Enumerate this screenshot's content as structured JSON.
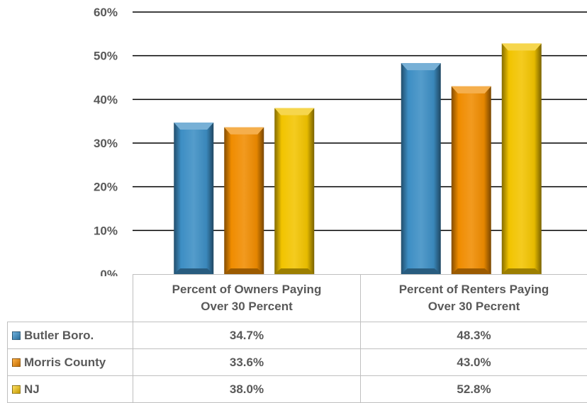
{
  "chart_data": {
    "type": "bar",
    "categories": [
      "Percent of Owners Paying Over 30 Percent",
      "Percent of Renters Paying Over 30 Pecrent"
    ],
    "series": [
      {
        "name": "Butler Boro.",
        "values": [
          34.7,
          48.3
        ],
        "labels": [
          "34.7%",
          "48.3%"
        ],
        "color": "#3d8ec4"
      },
      {
        "name": "Morris County",
        "values": [
          33.6,
          43.0
        ],
        "labels": [
          "33.6%",
          "43.0%"
        ],
        "color": "#f08c00"
      },
      {
        "name": "NJ",
        "values": [
          38.0,
          52.8
        ],
        "labels": [
          "38.0%",
          "52.8%"
        ],
        "color": "#f2c400"
      }
    ],
    "yticks": [
      "0%",
      "10%",
      "20%",
      "30%",
      "40%",
      "50%",
      "60%"
    ],
    "ylim": [
      0,
      60
    ],
    "grid": true,
    "legend": "data-table"
  },
  "table": {
    "headers": [
      [
        "Percent of Owners Paying",
        "Over 30 Percent"
      ],
      [
        "Percent of Renters Paying",
        "Over 30 Pecrent"
      ]
    ]
  }
}
